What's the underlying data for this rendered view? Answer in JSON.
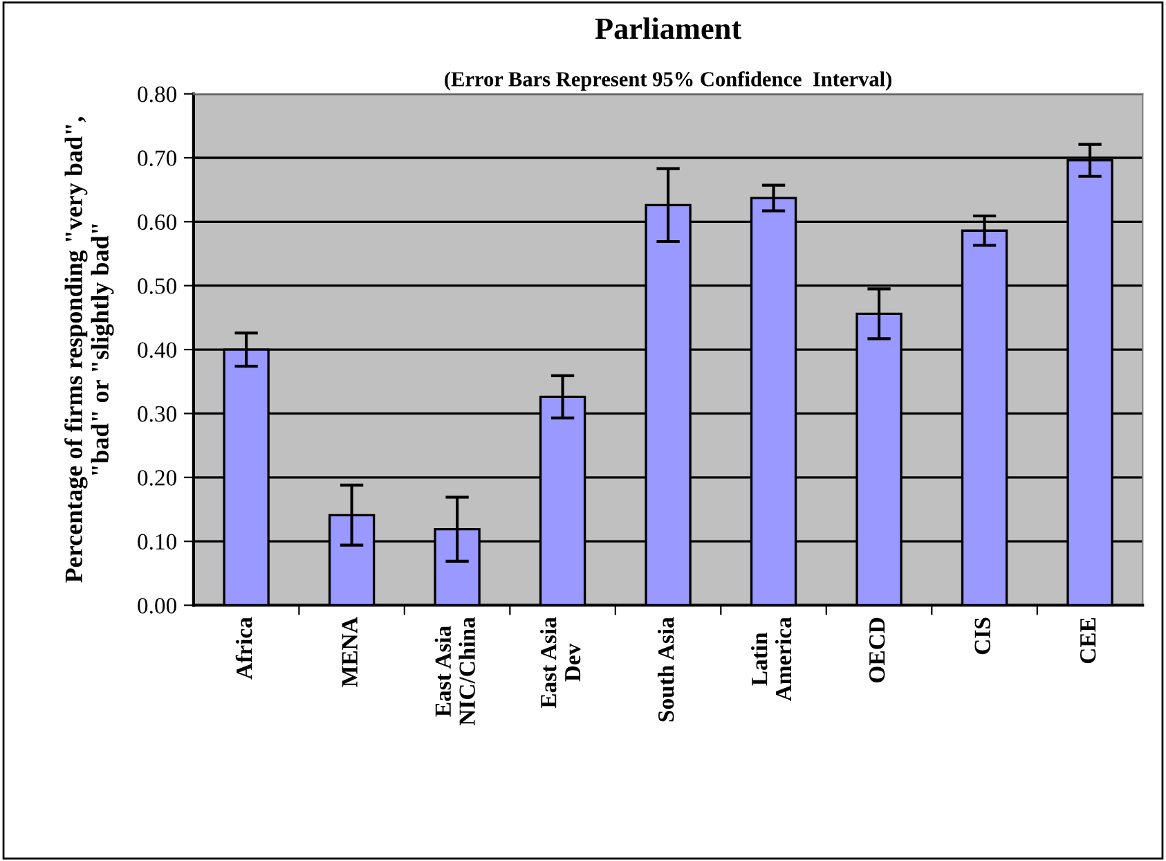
{
  "chart_data": {
    "type": "bar",
    "title": "Parliament",
    "subtitle": "(Error Bars Represent 95% Confidence  Interval)",
    "ylabel": "Percentage of firms responding \"very bad\",\n\"bad\" or \"slightly bad\"",
    "categories": [
      "Africa",
      "MENA",
      "East Asia\nNIC/China",
      "East Asia\nDev",
      "South Asia",
      "Latin\nAmerica",
      "OECD",
      "CIS",
      "CEE"
    ],
    "values": [
      0.4,
      0.141,
      0.119,
      0.326,
      0.626,
      0.637,
      0.456,
      0.586,
      0.696
    ],
    "errors": [
      0.026,
      0.047,
      0.05,
      0.033,
      0.057,
      0.02,
      0.039,
      0.023,
      0.025
    ],
    "color": "#9999ff",
    "ylim": [
      0,
      0.8
    ],
    "yticks": [
      {
        "value": 0,
        "label": "0.00"
      },
      {
        "value": 0.1,
        "label": "0.10"
      },
      {
        "value": 0.2,
        "label": "0.20"
      },
      {
        "value": 0.3,
        "label": "0.30"
      },
      {
        "value": 0.4,
        "label": "0.40"
      },
      {
        "value": 0.5,
        "label": "0.50"
      },
      {
        "value": 0.6,
        "label": "0.60"
      },
      {
        "value": 0.7,
        "label": "0.70"
      },
      {
        "value": 0.8,
        "label": "0.80"
      }
    ],
    "grid": "y"
  }
}
